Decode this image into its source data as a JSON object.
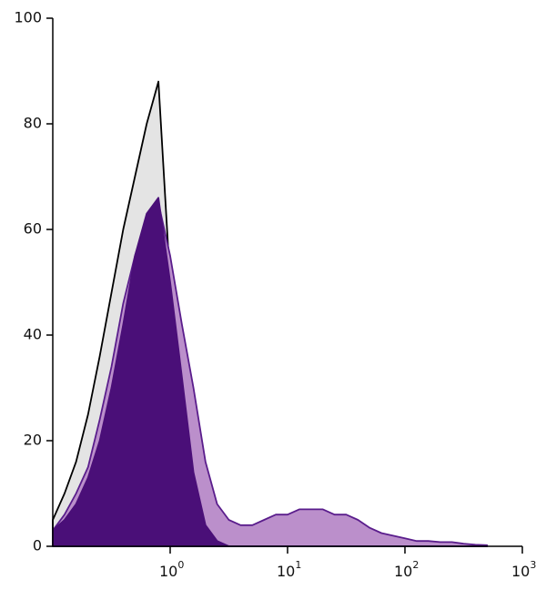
{
  "chart_data": {
    "type": "histogram-overlay",
    "xscale": "log",
    "xlim": [
      0.1,
      1000
    ],
    "ylim": [
      0,
      100
    ],
    "yticks": [
      0,
      20,
      40,
      60,
      80,
      100
    ],
    "xticks": [
      {
        "value": 1,
        "label": "10",
        "sup": "0"
      },
      {
        "value": 10,
        "label": "10",
        "sup": "1"
      },
      {
        "value": 100,
        "label": "10",
        "sup": "2"
      },
      {
        "value": 1000,
        "label": "10",
        "sup": "3"
      }
    ],
    "x": [
      0.1,
      0.126,
      0.158,
      0.2,
      0.251,
      0.316,
      0.398,
      0.501,
      0.631,
      0.794,
      1,
      1.26,
      1.58,
      2,
      2.51,
      3.16,
      3.98,
      5.01,
      6.31,
      7.94,
      10,
      12.6,
      15.8,
      20,
      25.1,
      31.6,
      39.8,
      50.1,
      63.1,
      79.4,
      100,
      126,
      158,
      200,
      251,
      316,
      398,
      501
    ],
    "series": [
      {
        "color": "#000000",
        "fill": "#e4e4e4",
        "values": [
          5,
          10,
          16,
          25,
          36,
          48,
          60,
          70,
          80,
          88,
          50,
          25,
          8,
          2,
          0.5,
          0,
          0,
          0,
          0,
          0,
          0,
          0,
          0,
          0,
          0,
          0,
          0,
          0,
          0,
          0,
          0,
          0,
          0,
          0,
          0,
          0,
          0,
          0
        ]
      },
      {
        "color": "#5a1d8c",
        "fill": "#bb8fcb",
        "values": [
          3,
          6,
          10,
          15,
          24,
          34,
          46,
          55,
          62,
          65,
          55,
          42,
          30,
          16,
          8,
          5,
          4,
          4,
          5,
          6,
          6,
          7,
          7,
          7,
          6,
          6,
          5,
          3.5,
          2.5,
          2,
          1.5,
          1,
          1,
          0.8,
          0.8,
          0.5,
          0.3,
          0.2
        ]
      },
      {
        "color": "#4a0f78",
        "fill": "#4a0f78",
        "values": [
          3,
          5,
          8,
          13,
          20,
          30,
          42,
          55,
          63,
          66,
          50,
          32,
          14,
          4,
          1,
          0,
          0,
          0,
          0,
          0,
          0,
          0,
          0,
          0,
          0,
          0,
          0,
          0,
          0,
          0,
          0,
          0,
          0,
          0,
          0,
          0,
          0,
          0
        ]
      }
    ]
  }
}
